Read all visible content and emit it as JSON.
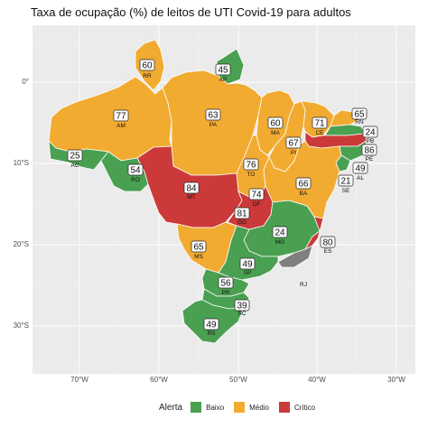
{
  "title": "Taxa de ocupação (%) de leitos de UTI Covid-19 para adultos",
  "axes": {
    "y_ticks": [
      "0°",
      "10°S",
      "20°S",
      "30°S"
    ],
    "x_ticks": [
      "70°W",
      "60°W",
      "50°W",
      "40°W",
      "30°W"
    ]
  },
  "legend": {
    "title": "Alerta",
    "items": [
      {
        "label": "Baixo",
        "color": "#4aa051"
      },
      {
        "label": "Médio",
        "color": "#f2ab31"
      },
      {
        "label": "Crítico",
        "color": "#cc3939"
      }
    ]
  },
  "colors": {
    "background": "#ebebeb",
    "grid": "#ffffff",
    "no_data": "#7f7f7f",
    "border": "#ffffff"
  },
  "states": [
    {
      "uf": "RR",
      "value": "60",
      "alert": "Médio"
    },
    {
      "uf": "AP",
      "value": "45",
      "alert": "Baixo"
    },
    {
      "uf": "AM",
      "value": "77",
      "alert": "Médio"
    },
    {
      "uf": "PA",
      "value": "63",
      "alert": "Médio"
    },
    {
      "uf": "MA",
      "value": "60",
      "alert": "Médio"
    },
    {
      "uf": "CE",
      "value": "71",
      "alert": "Médio"
    },
    {
      "uf": "RN",
      "value": "65",
      "alert": "Médio"
    },
    {
      "uf": "PB",
      "value": "24",
      "alert": "Baixo"
    },
    {
      "uf": "PE",
      "value": "86",
      "alert": "Crítico"
    },
    {
      "uf": "AL",
      "value": "49",
      "alert": "Baixo"
    },
    {
      "uf": "SE",
      "value": "21",
      "alert": "Baixo"
    },
    {
      "uf": "PI",
      "value": "67",
      "alert": "Médio"
    },
    {
      "uf": "AC",
      "value": "25",
      "alert": "Baixo"
    },
    {
      "uf": "RO",
      "value": "54",
      "alert": "Baixo"
    },
    {
      "uf": "TO",
      "value": "76",
      "alert": "Médio"
    },
    {
      "uf": "BA",
      "value": "66",
      "alert": "Médio"
    },
    {
      "uf": "MT",
      "value": "84",
      "alert": "Crítico"
    },
    {
      "uf": "DF",
      "value": "74",
      "alert": "Médio"
    },
    {
      "uf": "GO",
      "value": "81",
      "alert": "Crítico"
    },
    {
      "uf": "MG",
      "value": "24",
      "alert": "Baixo"
    },
    {
      "uf": "ES",
      "value": "80",
      "alert": "Crítico"
    },
    {
      "uf": "MS",
      "value": "65",
      "alert": "Médio"
    },
    {
      "uf": "SP",
      "value": "49",
      "alert": "Baixo"
    },
    {
      "uf": "PR",
      "value": "56",
      "alert": "Baixo"
    },
    {
      "uf": "SC",
      "value": "39",
      "alert": "Baixo"
    },
    {
      "uf": "RS",
      "value": "49",
      "alert": "Baixo"
    },
    {
      "uf": "RJ",
      "value": "",
      "alert": "Sem dados"
    }
  ]
}
